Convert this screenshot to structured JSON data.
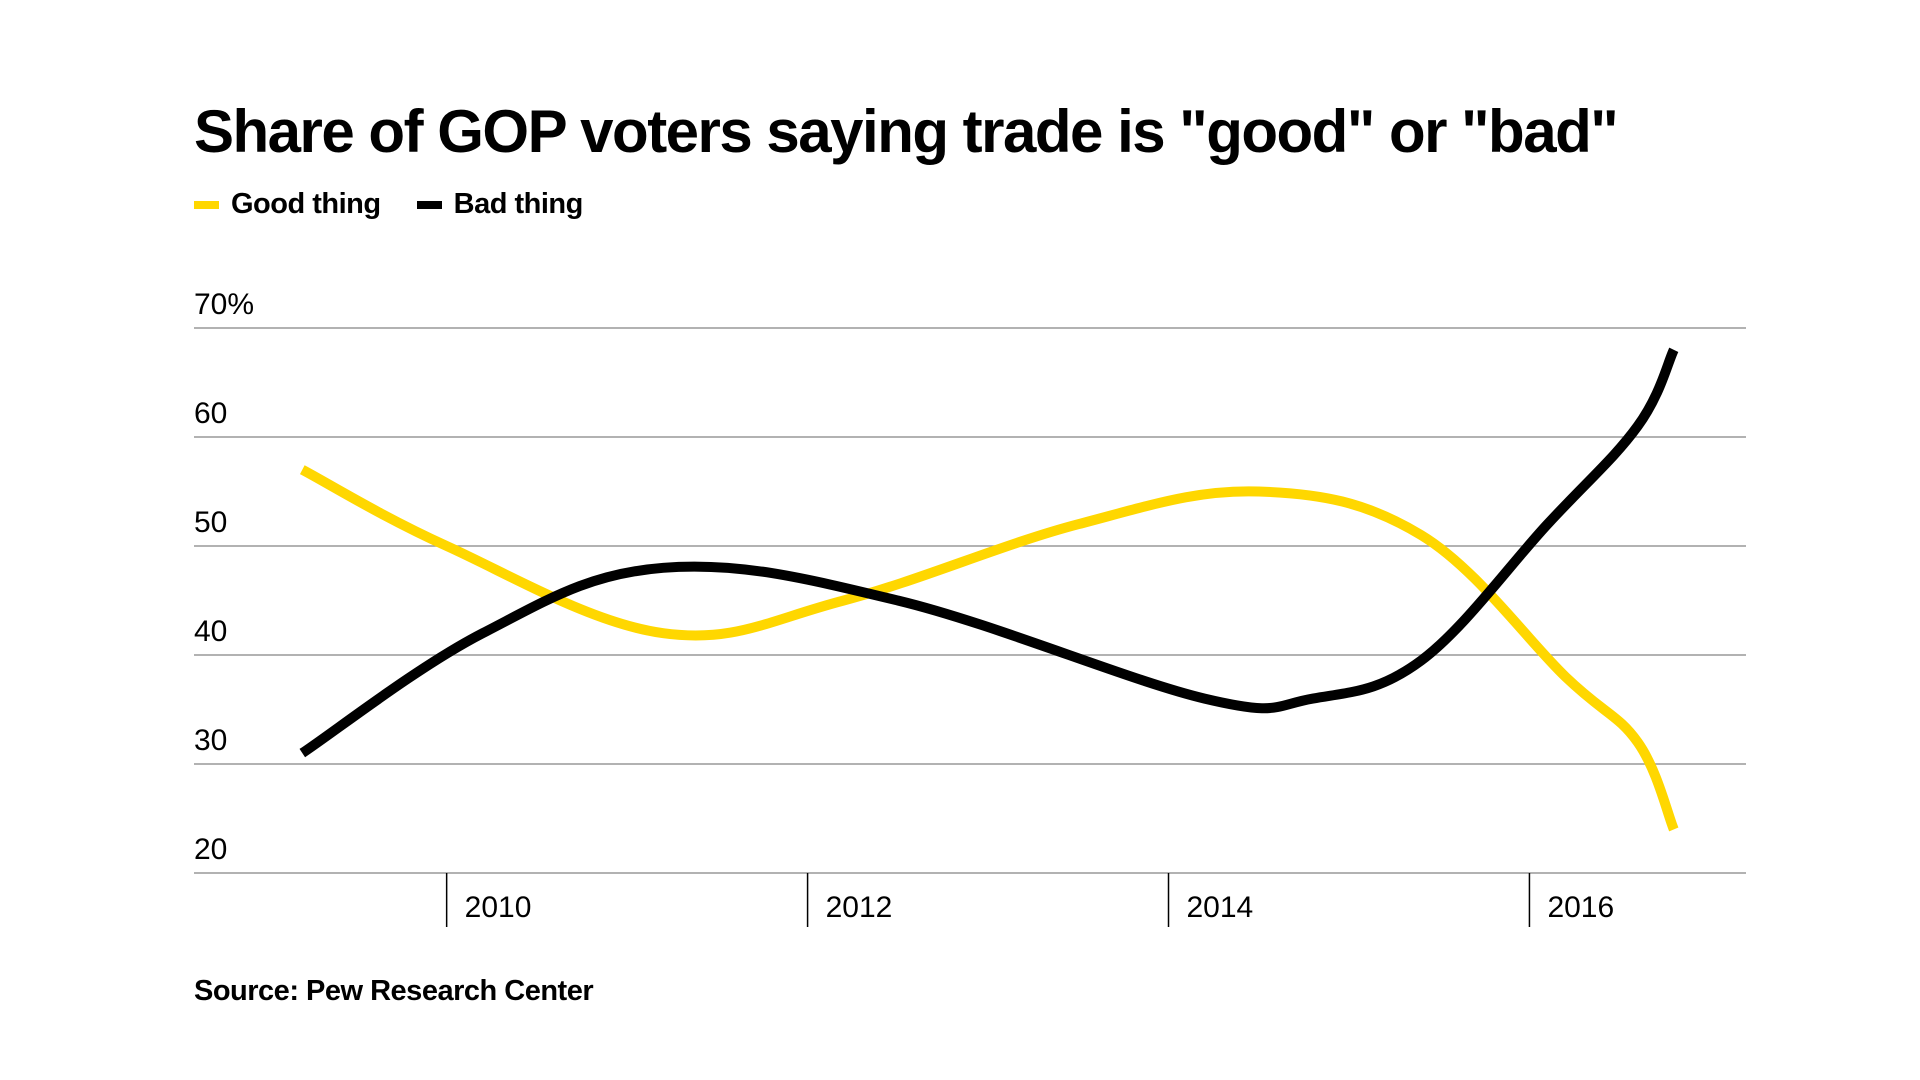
{
  "title": "Share of GOP voters saying trade is \"good\" or \"bad\"",
  "source": "Source: Pew Research Center",
  "colors": {
    "good": "#FFD700",
    "bad": "#000000",
    "grid": "#999999"
  },
  "chart_data": {
    "type": "line",
    "title": "Share of GOP voters saying trade is \"good\" or \"bad\"",
    "xlabel": "",
    "ylabel": "",
    "legend": "top-left",
    "grid": true,
    "ylim": [
      20,
      70
    ],
    "xlim": [
      2008.6,
      2017.2
    ],
    "y_ticks": [
      70,
      60,
      50,
      40,
      30,
      20
    ],
    "y_tick_labels": [
      "70%",
      "60",
      "50",
      "40",
      "30",
      "20"
    ],
    "x_ticks": [
      2010,
      2012,
      2014,
      2016
    ],
    "x_tick_labels": [
      "2010",
      "2012",
      "2014",
      "2016"
    ],
    "series": [
      {
        "name": "Good thing",
        "color": "#FFD700",
        "x": [
          2009.2,
          2010,
          2011.2,
          2012.2,
          2013.5,
          2014.5,
          2015.4,
          2016.2,
          2016.6,
          2016.8
        ],
        "y": [
          57,
          50,
          42,
          45,
          52,
          55,
          51,
          38,
          32,
          24
        ]
      },
      {
        "name": "Bad thing",
        "color": "#000000",
        "x": [
          2009.2,
          2010.2,
          2011.2,
          2012.5,
          2014.2,
          2014.8,
          2015.4,
          2016.1,
          2016.6,
          2016.8
        ],
        "y": [
          31,
          42,
          48,
          45,
          36,
          36,
          39.5,
          52,
          61,
          68
        ]
      }
    ]
  }
}
